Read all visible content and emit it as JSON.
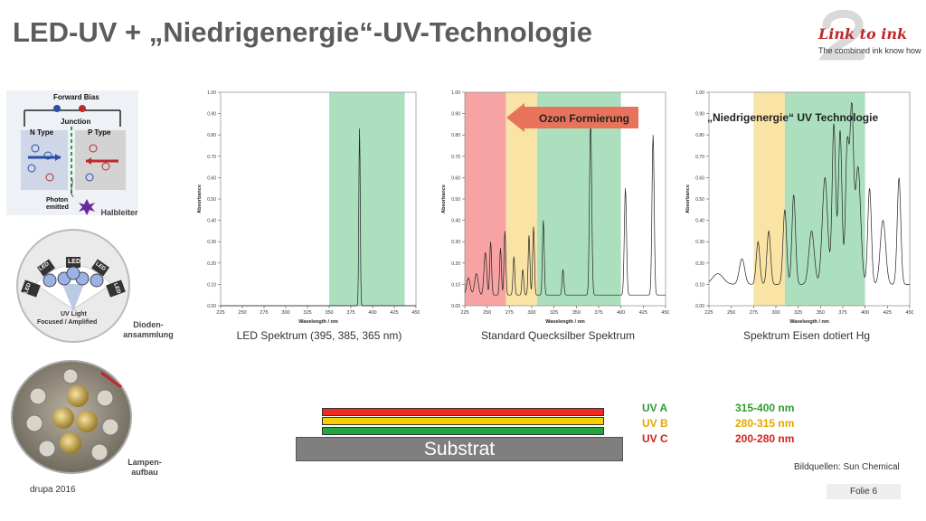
{
  "slide": {
    "title": "LED-UV + „Niedrigenergie“-UV-Technologie",
    "footer_left": "drupa 2016",
    "footer_right": "Folie 6",
    "source": "Bildquellen: Sun Chemical"
  },
  "logo": {
    "brand": "Link to ink",
    "tagline": "The combined ink know how"
  },
  "left_images": {
    "diode": {
      "labels": [
        "Forward Bias",
        "Junction",
        "N Type",
        "P Type",
        "Photon emitted"
      ],
      "caption": "Halbleiter"
    },
    "cluster": {
      "labels": [
        "LED",
        "LED",
        "LED",
        "LED",
        "LED",
        "UV Light",
        "Focused / Amplified"
      ],
      "caption_line1": "Dioden-",
      "caption_line2": "ansammlung"
    },
    "lamp": {
      "caption_line1": "Lampen-",
      "caption_line2": "aufbau"
    }
  },
  "spectra": [
    {
      "caption": "LED Spektrum (395, 385, 365 nm)",
      "xlabel": "Wavelength / nm",
      "ylabel": "Absorbance",
      "xticks": [
        "225",
        "250",
        "275",
        "300",
        "325",
        "350",
        "375",
        "400",
        "425",
        "450"
      ],
      "yticks": [
        "0.00",
        "0.10",
        "0.20",
        "0.30",
        "0.40",
        "0.50",
        "0.60",
        "0.70",
        "0.80",
        "0.90",
        "1.00"
      ]
    },
    {
      "caption": "Standard Quecksilber Spektrum",
      "banner": "Ozon Formierung",
      "xlabel": "Wavelength / nm",
      "ylabel": "Absorbance",
      "xticks": [
        "225",
        "250",
        "275",
        "300",
        "325",
        "350",
        "375",
        "400",
        "425",
        "450"
      ],
      "yticks": [
        "0.00",
        "0.10",
        "0.20",
        "0.30",
        "0.40",
        "0.50",
        "0.60",
        "0.70",
        "0.80",
        "0.90",
        "1.00"
      ]
    },
    {
      "caption": "Spektrum Eisen dotiert Hg",
      "banner": "„Niedrigenergie“ UV Technologie",
      "xlabel": "Wavelength / nm",
      "ylabel": "Absorbance",
      "xticks": [
        "225",
        "250",
        "275",
        "300",
        "325",
        "350",
        "375",
        "400",
        "425",
        "450"
      ],
      "yticks": [
        "0.00",
        "0.10",
        "0.20",
        "0.30",
        "0.40",
        "0.50",
        "0.60",
        "0.70",
        "0.80",
        "0.90",
        "1.00"
      ]
    }
  ],
  "layers": {
    "substrate": "Substrat",
    "colors": {
      "uva": "#f02a1e",
      "uvb": "#f4d000",
      "uvc": "#1fa63c"
    }
  },
  "uv_legend": [
    {
      "name": "UV A",
      "range": "315-400 nm",
      "name_color": "#2e9e2e",
      "range_color": "#2e9e2e"
    },
    {
      "name": "UV B",
      "range": "280-315 nm",
      "name_color": "#e0a800",
      "range_color": "#e0a800"
    },
    {
      "name": "UV C",
      "range": "200-280 nm",
      "name_color": "#d42020",
      "range_color": "#d42020"
    }
  ],
  "band_colors": {
    "uvc": "#f7a3a3",
    "uvb": "#f9e4a6",
    "uva": "#acdfbe"
  }
}
